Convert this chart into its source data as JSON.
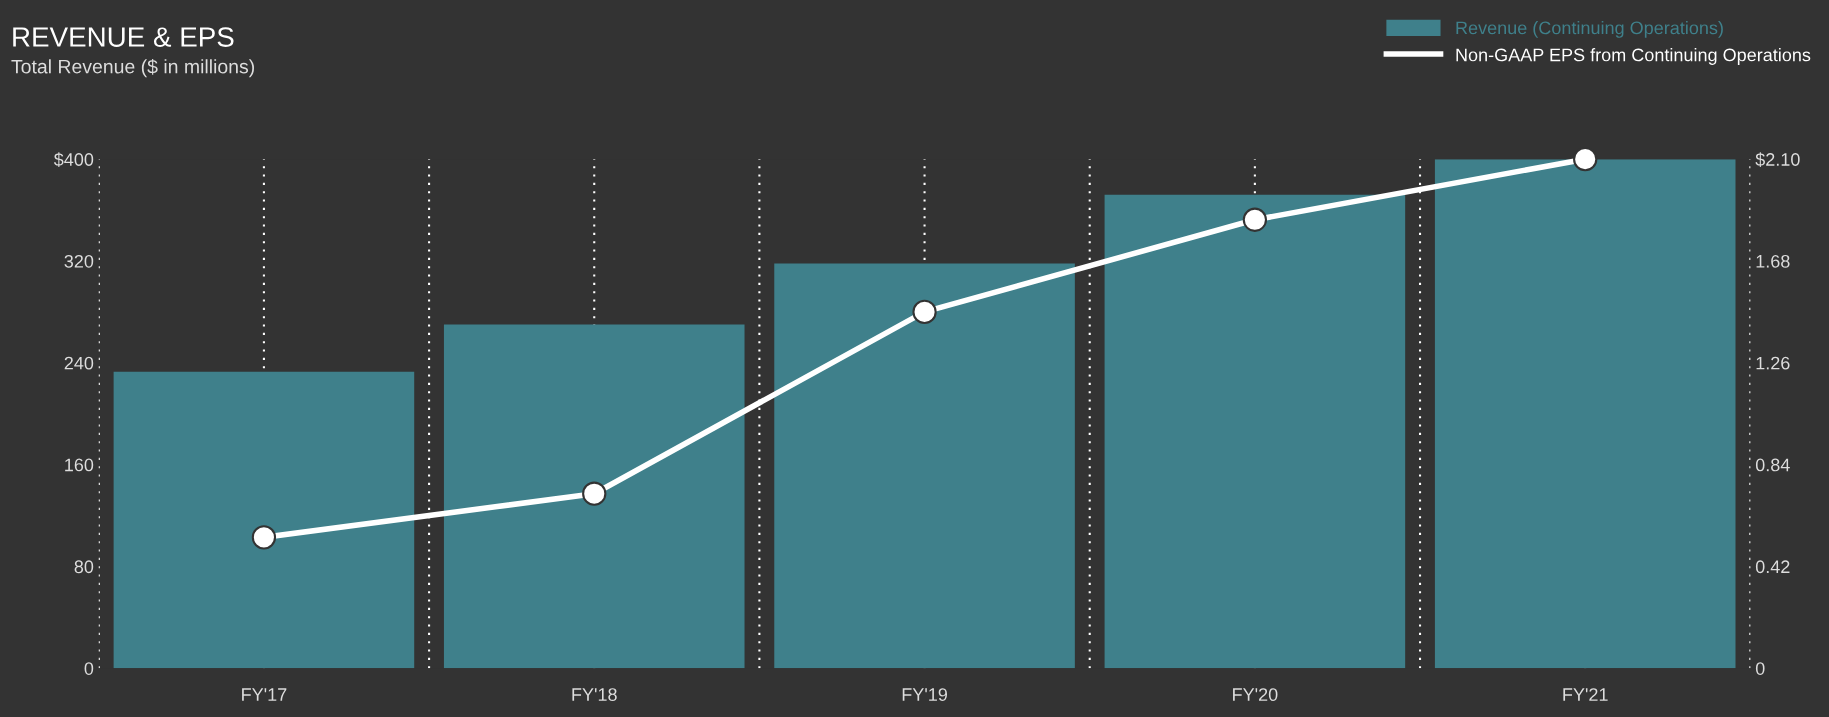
{
  "chart_data": {
    "type": "bar",
    "title": "REVENUE & EPS",
    "subtitle": "Total Revenue ($ in millions)",
    "categories": [
      "FY'17",
      "FY'18",
      "FY'19",
      "FY'20",
      "FY'21"
    ],
    "series": [
      {
        "name": "Revenue (Continuing Operations)",
        "color": "#3f808b",
        "values": [
          233,
          270,
          318,
          372,
          400
        ]
      },
      {
        "name": "Non-GAAP EPS from Continuing Operations",
        "type": "line",
        "axis": "y2",
        "color": "#ffffff",
        "marker": "circle",
        "line_style": "solid",
        "values": [
          0.54,
          0.72,
          1.47,
          1.85,
          2.1
        ]
      }
    ],
    "ylim": [
      0,
      400
    ],
    "yticks": [
      0,
      80,
      160,
      240,
      320,
      {
        "value": 400,
        "label": "$400"
      }
    ],
    "y2lim": [
      0,
      2.1
    ],
    "y2ticks": [
      0,
      0.42,
      0.84,
      1.26,
      1.68,
      {
        "value": 2.1,
        "label": "$2.10"
      }
    ],
    "grid": "x",
    "legend": "top right"
  }
}
